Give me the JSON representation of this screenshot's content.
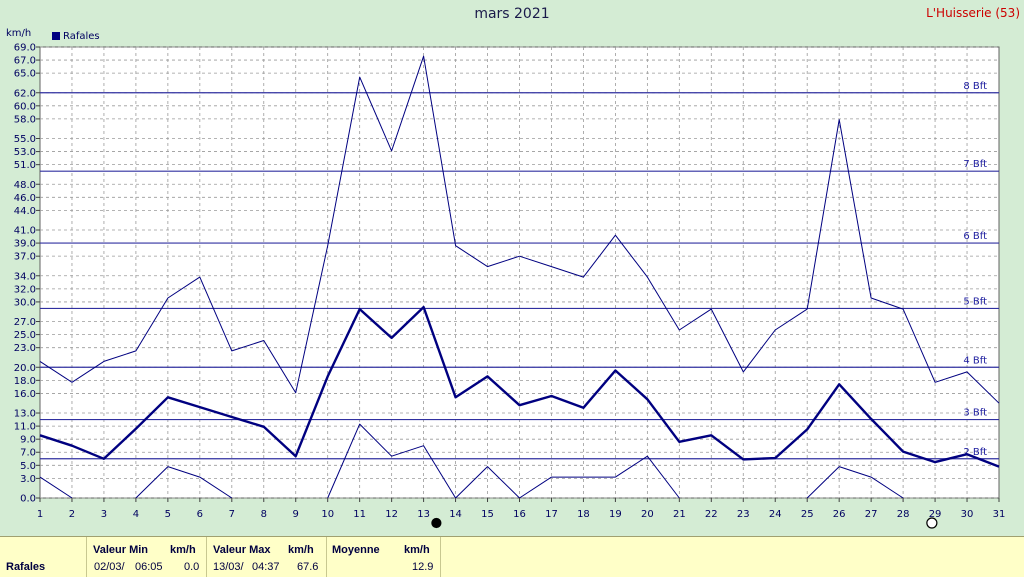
{
  "header": {
    "title": "mars 2021",
    "station": "L'Huisserie (53)",
    "unit_label": "km/h"
  },
  "legend": {
    "series_label": "Rafales"
  },
  "chart_data": {
    "type": "line",
    "title": "mars 2021",
    "ylabel": "km/h",
    "ylim": [
      0,
      69
    ],
    "xlim": [
      1,
      31
    ],
    "x": [
      1,
      2,
      3,
      4,
      5,
      6,
      7,
      8,
      9,
      10,
      11,
      12,
      13,
      14,
      15,
      16,
      17,
      18,
      19,
      20,
      21,
      22,
      23,
      24,
      25,
      26,
      27,
      28,
      29,
      30,
      31
    ],
    "x_ticks": [
      "1",
      "2",
      "3",
      "4",
      "5",
      "6",
      "7",
      "8",
      "9",
      "10",
      "11",
      "12",
      "13",
      "14",
      "15",
      "16",
      "17",
      "18",
      "19",
      "20",
      "21",
      "22",
      "23",
      "24",
      "25",
      "26",
      "27",
      "28",
      "29",
      "30",
      "31"
    ],
    "y_ticks": [
      0.0,
      3.0,
      5.0,
      7.0,
      9.0,
      11.0,
      13.0,
      16.0,
      18.0,
      20.0,
      23.0,
      25.0,
      27.0,
      30.0,
      32.0,
      34.0,
      37.0,
      39.0,
      41.0,
      44.0,
      46.0,
      48.0,
      51.0,
      53.0,
      55.0,
      58.0,
      60.0,
      62.0,
      65.0,
      67.0,
      69.0
    ],
    "series": [
      {
        "name": "Rafales",
        "role": "max",
        "color": "#000080",
        "values": [
          20.9,
          17.7,
          20.9,
          22.5,
          30.6,
          33.8,
          22.5,
          24.1,
          16.1,
          38.6,
          64.4,
          53.1,
          67.6,
          38.6,
          35.4,
          37.0,
          35.4,
          33.8,
          40.2,
          33.8,
          25.7,
          28.9,
          19.3,
          25.7,
          28.9,
          57.9,
          30.6,
          28.9,
          17.7,
          19.3,
          14.5
        ]
      },
      {
        "name": "Rafales",
        "role": "mean",
        "color": "#000080",
        "values": [
          9.6,
          8.0,
          6.0,
          10.6,
          15.4,
          13.9,
          12.4,
          10.9,
          6.4,
          18.6,
          28.9,
          24.5,
          29.2,
          15.4,
          18.6,
          14.2,
          15.6,
          13.8,
          19.5,
          15.1,
          8.6,
          9.6,
          5.9,
          6.1,
          10.5,
          17.4,
          12.1,
          7.1,
          5.5,
          6.7,
          4.8
        ]
      },
      {
        "name": "Rafales",
        "role": "min",
        "color": "#000080",
        "values": [
          3.2,
          0.0,
          null,
          0.0,
          4.8,
          3.2,
          0.0,
          null,
          null,
          0.0,
          11.3,
          6.4,
          8.0,
          0.0,
          4.8,
          0.0,
          3.2,
          3.2,
          3.2,
          6.4,
          0.0,
          null,
          null,
          null,
          0.0,
          4.8,
          3.2,
          0.0,
          null,
          null,
          null
        ]
      }
    ],
    "beaufort": [
      {
        "label": "2 Bft",
        "value": 6
      },
      {
        "label": "3 Bft",
        "value": 12
      },
      {
        "label": "4 Bft",
        "value": 20
      },
      {
        "label": "5 Bft",
        "value": 29
      },
      {
        "label": "6 Bft",
        "value": 39
      },
      {
        "label": "7 Bft",
        "value": 50
      },
      {
        "label": "8 Bft",
        "value": 62
      }
    ],
    "moon": [
      {
        "phase": "new",
        "day": 13.4
      },
      {
        "phase": "full",
        "day": 28.9
      }
    ],
    "grid": true,
    "legend_position": "top-left"
  },
  "stats": {
    "row_label": "Rafales",
    "min": {
      "header": "Valeur Min",
      "unit": "km/h",
      "date": "02/03/",
      "time": "06:05",
      "value": "0.0"
    },
    "max": {
      "header": "Valeur Max",
      "unit": "km/h",
      "date": "13/03/",
      "time": "04:37",
      "value": "67.6"
    },
    "mean": {
      "header": "Moyenne",
      "unit": "km/h",
      "value": "12.9"
    }
  }
}
